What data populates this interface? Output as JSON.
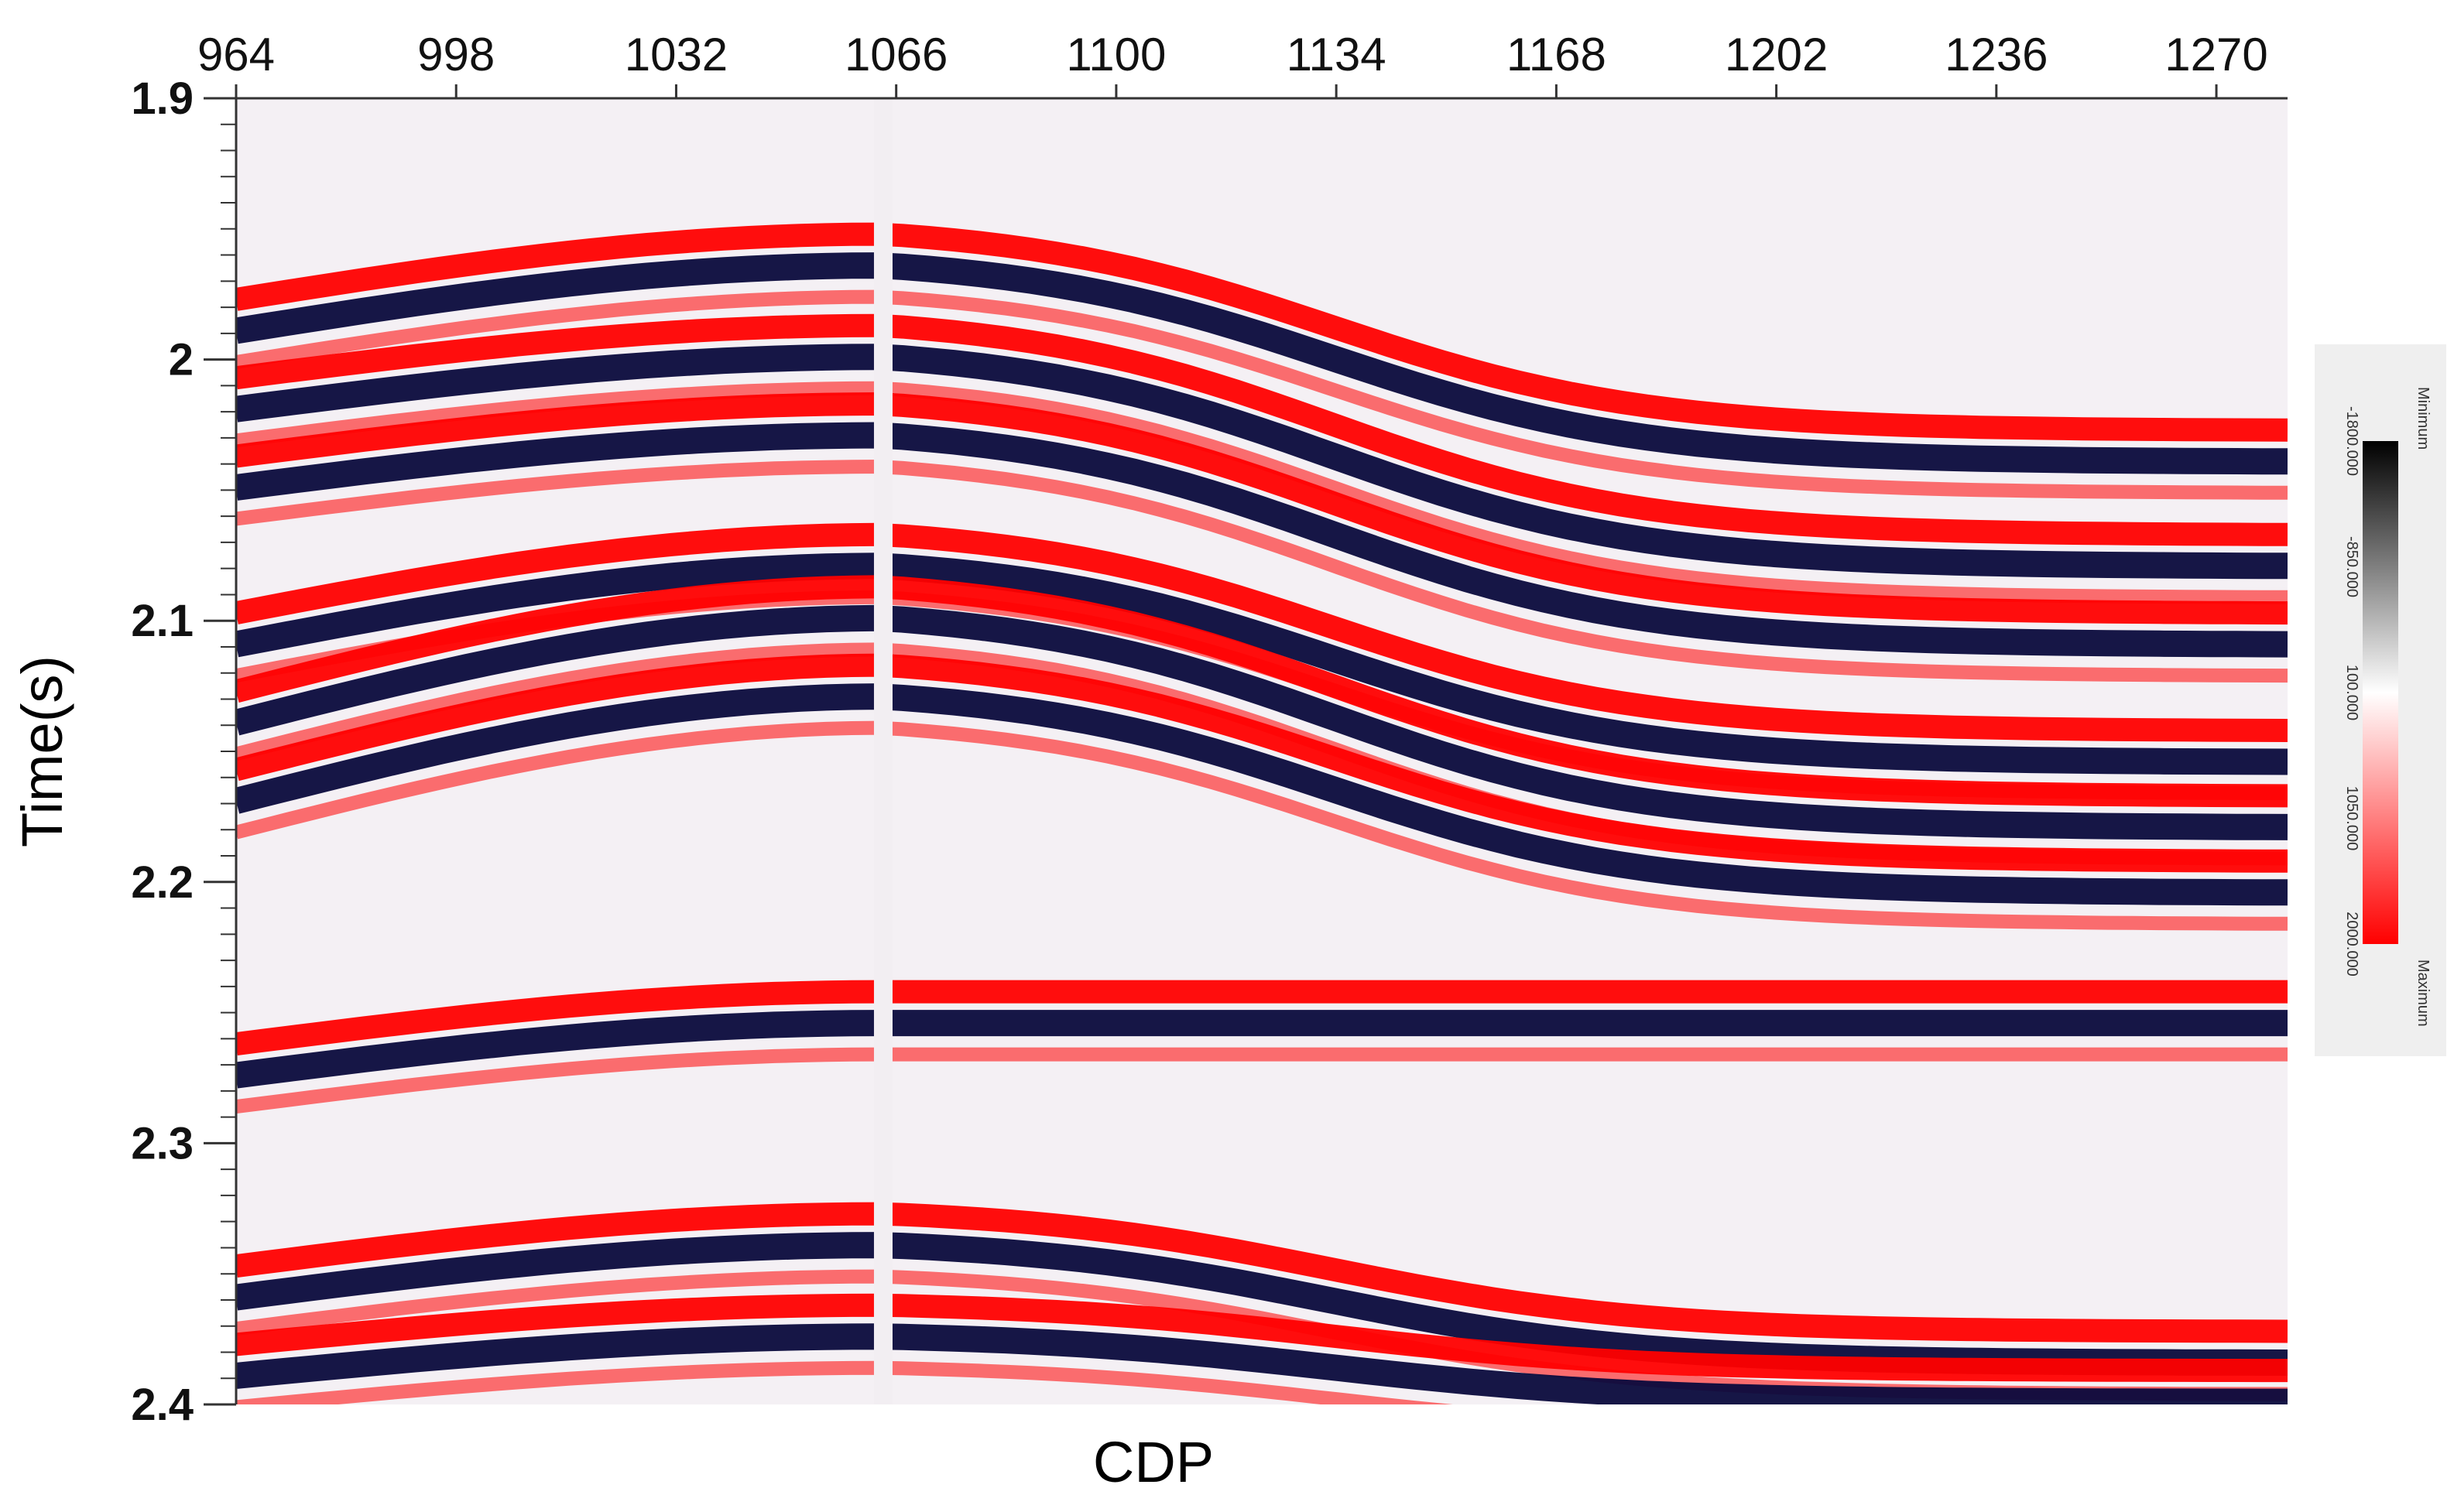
{
  "chart_data": {
    "type": "heatmap",
    "title": "",
    "xlabel": "CDP",
    "ylabel": "Time(s)",
    "xlim": [
      964,
      1281
    ],
    "ylim": [
      1.9,
      2.4
    ],
    "x_tick_labels": [
      "964",
      "998",
      "1032",
      "1066",
      "1100",
      "1134",
      "1168",
      "1202",
      "1236",
      "1270"
    ],
    "x_tick_values": [
      964,
      998,
      1032,
      1066,
      1100,
      1134,
      1168,
      1202,
      1236,
      1270
    ],
    "y_tick_labels": [
      "1.9",
      "2",
      "2.1",
      "2.2",
      "2.3",
      "2.4"
    ],
    "y_tick_values": [
      1.9,
      2.0,
      2.1,
      2.2,
      2.3,
      2.4
    ],
    "y_minor_step": 0.01,
    "colorbar": {
      "position": "right",
      "min_label": "Minimum",
      "max_label": "Maximum",
      "tick_labels": [
        "-1800.000",
        "-850.000",
        "100.000",
        "1050.000",
        "2000.000"
      ],
      "range": [
        -1800,
        2000
      ],
      "colors": [
        "#000000",
        "#ffffff",
        "#ff0000"
      ]
    },
    "section_colors": {
      "trough": "#0a0a3c",
      "mid": "#ffffff",
      "peak": "#ff0000"
    },
    "gap_trace_cdp": 1064,
    "horizons": [
      {
        "t_left": 1.985,
        "t_crest": 1.96,
        "t_right": 2.035
      },
      {
        "t_left": 2.015,
        "t_crest": 1.995,
        "t_right": 2.075
      },
      {
        "t_left": 2.045,
        "t_crest": 2.025,
        "t_right": 2.105
      },
      {
        "t_left": 2.105,
        "t_crest": 2.075,
        "t_right": 2.15
      },
      {
        "t_left": 2.135,
        "t_crest": 2.095,
        "t_right": 2.175
      },
      {
        "t_left": 2.165,
        "t_crest": 2.125,
        "t_right": 2.2
      },
      {
        "t_left": 2.27,
        "t_crest": 2.25,
        "t_right": 2.25
      },
      {
        "t_left": 2.355,
        "t_crest": 2.335,
        "t_right": 2.38
      },
      {
        "t_left": 2.385,
        "t_crest": 2.37,
        "t_right": 2.395
      }
    ]
  }
}
